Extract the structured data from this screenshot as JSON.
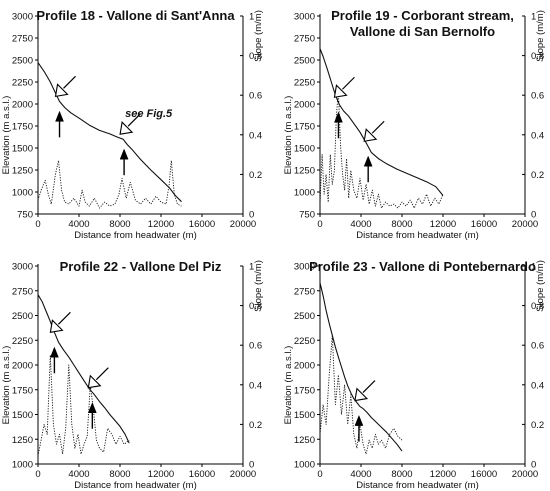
{
  "chart_data": [
    {
      "type": "line",
      "title_lines": [
        "Profile 18 - Vallone di Sant'Anna"
      ],
      "xlabel": "Distance from headwater (m)",
      "ylabel": "Elevation (m a.s.l.)",
      "y2label": "Slope (m/m)",
      "xlim": [
        0,
        20000
      ],
      "ylim": [
        750,
        3000
      ],
      "y2lim": [
        0,
        1
      ],
      "xticks": [
        0,
        4000,
        8000,
        12000,
        16000,
        20000
      ],
      "yticks": [
        750,
        1000,
        1250,
        1500,
        1750,
        2000,
        2250,
        2500,
        2750,
        3000
      ],
      "y2ticks": [
        0,
        0.2,
        0.4,
        0.6,
        0.8,
        1
      ],
      "series": [
        {
          "role": "elevation",
          "style": "solid",
          "x": [
            0,
            600,
            1200,
            1800,
            2100,
            2600,
            3200,
            4000,
            5000,
            6000,
            7000,
            7800,
            8300,
            8700,
            9200,
            10000,
            11000,
            12000,
            12800,
            13400,
            14000
          ],
          "y": [
            2470,
            2370,
            2250,
            2100,
            2030,
            1960,
            1900,
            1840,
            1760,
            1700,
            1660,
            1620,
            1600,
            1540,
            1480,
            1370,
            1250,
            1140,
            1050,
            960,
            890
          ]
        },
        {
          "role": "slope",
          "style": "dotted",
          "x": [
            0,
            300,
            700,
            1000,
            1300,
            1700,
            2000,
            2300,
            2600,
            3000,
            3500,
            4000,
            4300,
            4600,
            5000,
            5500,
            6000,
            6500,
            7000,
            7500,
            7900,
            8200,
            8600,
            9000,
            9500,
            10000,
            10500,
            11000,
            11500,
            12000,
            12500,
            12800,
            13000,
            13300,
            13600,
            14000
          ],
          "y": [
            0.07,
            0.12,
            0.17,
            0.1,
            0.05,
            0.2,
            0.27,
            0.12,
            0.06,
            0.05,
            0.08,
            0.04,
            0.12,
            0.06,
            0.04,
            0.08,
            0.03,
            0.06,
            0.04,
            0.05,
            0.1,
            0.18,
            0.08,
            0.16,
            0.07,
            0.05,
            0.08,
            0.05,
            0.09,
            0.06,
            0.05,
            0.15,
            0.27,
            0.1,
            0.05,
            0.04
          ]
        }
      ],
      "arrows": [
        {
          "kind": "hollow",
          "x": 2100,
          "y": 2030
        },
        {
          "kind": "solid",
          "x": 2100,
          "y": 2030
        },
        {
          "kind": "hollow",
          "x": 8400,
          "y": 1600
        },
        {
          "kind": "solid",
          "x": 8400,
          "y": 1600
        }
      ],
      "annotation": "see Fig.5"
    },
    {
      "type": "line",
      "title_lines": [
        "Profile 19 - Corborant stream,",
        "Vallone di San Bernolfo"
      ],
      "xlabel": "Distance from headwater (m)",
      "ylabel": "Elevation (m a.s.l.)",
      "y2label": "Slope (m/m)",
      "xlim": [
        0,
        20000
      ],
      "ylim": [
        750,
        3000
      ],
      "y2lim": [
        0,
        1
      ],
      "xticks": [
        0,
        4000,
        8000,
        12000,
        16000,
        20000
      ],
      "yticks": [
        750,
        1000,
        1250,
        1500,
        1750,
        2000,
        2250,
        2500,
        2750,
        3000
      ],
      "y2ticks": [
        0,
        0.2,
        0.4,
        0.6,
        0.8,
        1
      ],
      "series": [
        {
          "role": "elevation",
          "style": "solid",
          "x": [
            0,
            300,
            700,
            1100,
            1500,
            1900,
            2300,
            2800,
            3300,
            3900,
            4500,
            5000,
            5700,
            6500,
            7500,
            8500,
            9500,
            10500,
            11300,
            12000
          ],
          "y": [
            2630,
            2540,
            2400,
            2250,
            2100,
            1990,
            1920,
            1860,
            1780,
            1680,
            1560,
            1450,
            1380,
            1320,
            1260,
            1210,
            1160,
            1110,
            1060,
            960
          ]
        },
        {
          "role": "slope",
          "style": "dotted",
          "x": [
            0,
            200,
            400,
            600,
            800,
            1000,
            1200,
            1400,
            1600,
            1800,
            2000,
            2200,
            2400,
            2600,
            2800,
            3000,
            3300,
            3600,
            3900,
            4200,
            4500,
            4800,
            5100,
            5400,
            5700,
            6000,
            6400,
            6800,
            7200,
            7600,
            8000,
            8400,
            8800,
            9200,
            9600,
            10000,
            10400,
            10800,
            11200,
            11600,
            12000
          ],
          "y": [
            0.05,
            0.3,
            0.1,
            0.2,
            0.06,
            0.3,
            0.15,
            0.22,
            0.5,
            0.62,
            0.35,
            0.2,
            0.12,
            0.28,
            0.08,
            0.22,
            0.12,
            0.08,
            0.18,
            0.07,
            0.15,
            0.05,
            0.12,
            0.04,
            0.1,
            0.03,
            0.06,
            0.04,
            0.05,
            0.03,
            0.06,
            0.04,
            0.07,
            0.03,
            0.08,
            0.05,
            0.1,
            0.04,
            0.08,
            0.05,
            0.1
          ]
        }
      ],
      "arrows": [
        {
          "kind": "hollow",
          "x": 1800,
          "y": 2020
        },
        {
          "kind": "solid",
          "x": 1800,
          "y": 2020
        },
        {
          "kind": "hollow",
          "x": 4700,
          "y": 1520
        },
        {
          "kind": "solid",
          "x": 4700,
          "y": 1520
        }
      ]
    },
    {
      "type": "line",
      "title_lines": [
        "Profile 22 - Vallone Del Piz"
      ],
      "xlabel": "Distance from headwater (m)",
      "ylabel": "Elevation (m a.s.l.)",
      "y2label": "Slope (m/m)",
      "xlim": [
        0,
        20000
      ],
      "ylim": [
        1000,
        3000
      ],
      "y2lim": [
        0,
        1
      ],
      "xticks": [
        0,
        4000,
        8000,
        12000,
        16000,
        20000
      ],
      "yticks": [
        1000,
        1250,
        1500,
        1750,
        2000,
        2250,
        2500,
        2750,
        3000
      ],
      "y2ticks": [
        0,
        0.2,
        0.4,
        0.6,
        0.8,
        1
      ],
      "series": [
        {
          "role": "elevation",
          "style": "solid",
          "x": [
            0,
            400,
            800,
            1200,
            1600,
            2000,
            2500,
            3000,
            3500,
            4000,
            4500,
            5000,
            5500,
            6000,
            6500,
            7000,
            7500,
            8000,
            8500,
            8900
          ],
          "y": [
            2710,
            2640,
            2540,
            2440,
            2330,
            2230,
            2150,
            2080,
            2000,
            1920,
            1840,
            1760,
            1700,
            1630,
            1570,
            1500,
            1440,
            1380,
            1300,
            1210
          ]
        },
        {
          "role": "slope",
          "style": "dotted",
          "x": [
            0,
            300,
            600,
            900,
            1200,
            1500,
            1800,
            2100,
            2400,
            2700,
            3000,
            3300,
            3600,
            3900,
            4200,
            4500,
            4800,
            5100,
            5400,
            5700,
            6000,
            6400,
            6800,
            7200,
            7600,
            8000,
            8400,
            8900
          ],
          "y": [
            0.04,
            0.12,
            0.2,
            0.15,
            0.55,
            0.2,
            0.1,
            0.15,
            0.05,
            0.18,
            0.5,
            0.2,
            0.08,
            0.15,
            0.05,
            0.1,
            0.14,
            0.4,
            0.28,
            0.12,
            0.08,
            0.06,
            0.18,
            0.15,
            0.1,
            0.14,
            0.1,
            0.12
          ]
        }
      ],
      "arrows": [
        {
          "kind": "hollow",
          "x": 1600,
          "y": 2280
        },
        {
          "kind": "solid",
          "x": 1600,
          "y": 2280
        },
        {
          "kind": "hollow",
          "x": 5300,
          "y": 1720
        },
        {
          "kind": "solid",
          "x": 5300,
          "y": 1720
        }
      ]
    },
    {
      "type": "line",
      "title_lines": [
        "Profile 23 - Vallone di Pontebernardo"
      ],
      "xlabel": "Distance from headwater (m)",
      "ylabel": "Elevation (m a.s.l.)",
      "y2label": "Slope (m/m)",
      "xlim": [
        0,
        20000
      ],
      "ylim": [
        1000,
        3000
      ],
      "y2lim": [
        0,
        1
      ],
      "xticks": [
        0,
        4000,
        8000,
        12000,
        16000,
        20000
      ],
      "yticks": [
        1000,
        1250,
        1500,
        1750,
        2000,
        2250,
        2500,
        2750,
        3000
      ],
      "y2ticks": [
        0,
        0.2,
        0.4,
        0.6,
        0.8,
        1
      ],
      "series": [
        {
          "role": "elevation",
          "style": "solid",
          "x": [
            0,
            300,
            600,
            900,
            1200,
            1500,
            1800,
            2100,
            2400,
            2700,
            3000,
            3300,
            3600,
            3900,
            4200,
            4600,
            5000,
            5500,
            6000,
            6500,
            7000,
            7500,
            8000
          ],
          "y": [
            2830,
            2700,
            2550,
            2420,
            2300,
            2180,
            2080,
            1980,
            1880,
            1790,
            1720,
            1660,
            1620,
            1580,
            1560,
            1520,
            1470,
            1420,
            1370,
            1320,
            1260,
            1200,
            1130
          ]
        },
        {
          "role": "slope",
          "style": "dotted",
          "x": [
            0,
            300,
            600,
            900,
            1200,
            1500,
            1800,
            2100,
            2400,
            2700,
            3000,
            3300,
            3600,
            3900,
            4200,
            4500,
            4800,
            5100,
            5400,
            5700,
            6000,
            6400,
            6800,
            7200,
            7600,
            8000
          ],
          "y": [
            0.15,
            0.3,
            0.2,
            0.45,
            0.65,
            0.3,
            0.45,
            0.25,
            0.4,
            0.2,
            0.35,
            0.15,
            0.08,
            0.2,
            0.1,
            0.05,
            0.12,
            0.08,
            0.15,
            0.1,
            0.12,
            0.08,
            0.15,
            0.18,
            0.14,
            0.12
          ]
        }
      ],
      "arrows": [
        {
          "kind": "hollow",
          "x": 3800,
          "y": 1590
        },
        {
          "kind": "solid",
          "x": 3800,
          "y": 1590
        }
      ]
    }
  ]
}
